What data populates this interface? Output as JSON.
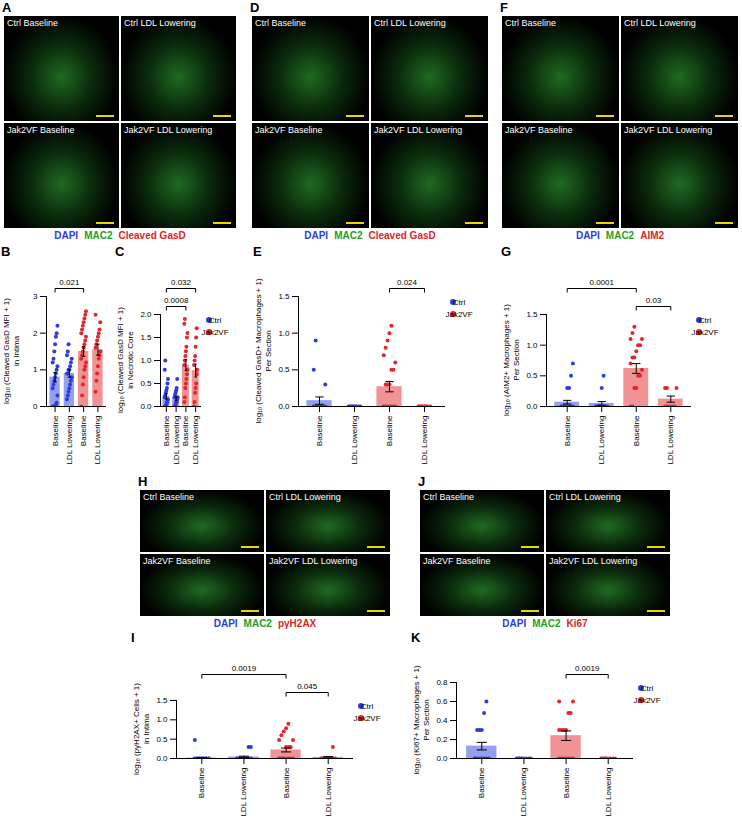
{
  "image_panels": [
    {
      "panel": "A",
      "tiles": [
        "Ctrl Baseline",
        "Ctrl LDL Lowering",
        "Jak2VF Baseline",
        "Jak2VF LDL Lowering"
      ],
      "stains": [
        {
          "text": "DAPI",
          "color": "#2b3de0"
        },
        {
          "text": "MAC2",
          "color": "#1e9e22"
        },
        {
          "text": "Cleaved GasD",
          "color": "#e02424"
        }
      ]
    },
    {
      "panel": "D",
      "tiles": [
        "Ctrl Baseline",
        "Ctrl LDL Lowering",
        "Jak2VF Baseline",
        "Jak2VF LDL Lowering"
      ],
      "stains": [
        {
          "text": "DAPI",
          "color": "#2b3de0"
        },
        {
          "text": "MAC2",
          "color": "#1e9e22"
        },
        {
          "text": "Cleaved GasD",
          "color": "#e02424"
        }
      ]
    },
    {
      "panel": "F",
      "tiles": [
        "Ctrl Baseline",
        "Ctrl LDL Lowering",
        "Jak2VF Baseline",
        "Jak2VF LDL Lowering"
      ],
      "stains": [
        {
          "text": "DAPI",
          "color": "#2b3de0"
        },
        {
          "text": "MAC2",
          "color": "#1e9e22"
        },
        {
          "text": "AIM2",
          "color": "#e02424"
        }
      ]
    },
    {
      "panel": "H",
      "tiles": [
        "Ctrl Baseline",
        "Ctrl LDL Lowering",
        "Jak2VF Baseline",
        "Jak2VF LDL Lowering"
      ],
      "stains": [
        {
          "text": "DAPI",
          "color": "#2b3de0"
        },
        {
          "text": "MAC2",
          "color": "#1e9e22"
        },
        {
          "text": "pγH2AX",
          "color": "#e02424"
        }
      ]
    },
    {
      "panel": "J",
      "tiles": [
        "Ctrl Baseline",
        "Ctrl LDL Lowering",
        "Jak2VF Baseline",
        "Jak2VF LDL Lowering"
      ],
      "stains": [
        {
          "text": "DAPI",
          "color": "#2b3de0"
        },
        {
          "text": "MAC2",
          "color": "#1e9e22"
        },
        {
          "text": "Ki67",
          "color": "#e02424"
        }
      ]
    }
  ],
  "chart_data": [
    {
      "panel": "B",
      "type": "bar",
      "ylabel": [
        "log₁₀ (Cleaved GasD MFI + 1)",
        "in Intima"
      ],
      "ylim": [
        0,
        3
      ],
      "yticks": [
        0,
        1,
        2,
        3
      ],
      "series": [
        {
          "name": "Ctrl",
          "color": "#2b3de0"
        },
        {
          "name": "Jak2VF",
          "color": "#e3262b"
        }
      ],
      "groups": [
        {
          "series": "Ctrl",
          "category": "Baseline",
          "value": 0.8,
          "error": 0.13,
          "points": [
            0,
            0,
            0,
            0,
            0.05,
            0.1,
            0.3,
            0.5,
            0.6,
            0.7,
            0.8,
            0.9,
            1.0,
            1.1,
            1.2,
            1.3,
            1.5,
            1.7,
            1.9,
            2.0,
            2.2
          ]
        },
        {
          "series": "Ctrl",
          "category": "LDL Lowering",
          "value": 0.9,
          "error": 0.1,
          "points": [
            0.2,
            0.3,
            0.4,
            0.5,
            0.6,
            0.7,
            0.8,
            0.9,
            0.9,
            1.0,
            1.0,
            1.1,
            1.2,
            1.3,
            1.4,
            1.5,
            1.7
          ]
        },
        {
          "series": "Jak2VF",
          "category": "Baseline",
          "value": 1.5,
          "error": 0.13,
          "points": [
            0,
            0.3,
            0.6,
            0.8,
            1.0,
            1.1,
            1.2,
            1.3,
            1.4,
            1.5,
            1.6,
            1.7,
            1.8,
            1.9,
            2.0,
            2.1,
            2.2,
            2.3,
            2.4,
            2.5,
            2.6
          ]
        },
        {
          "series": "Jak2VF",
          "category": "LDL Lowering",
          "value": 1.55,
          "error": 0.15,
          "points": [
            0.4,
            0.7,
            0.9,
            1.1,
            1.3,
            1.4,
            1.5,
            1.6,
            1.7,
            1.8,
            1.9,
            2.0,
            2.1,
            2.3,
            2.5
          ]
        }
      ],
      "annotations": [
        {
          "label": "0.021",
          "between": [
            {
              "series": "Ctrl",
              "category": "Baseline"
            },
            {
              "series": "Jak2VF",
              "category": "Baseline"
            }
          ]
        }
      ]
    },
    {
      "panel": "C",
      "type": "bar",
      "ylabel": [
        "log₁₀ (Cleaved GasD MFI + 1)",
        "in Necrotic Core"
      ],
      "ylim": [
        0,
        2
      ],
      "yticks": [
        {
          "value": 0,
          "label": "0.0"
        },
        {
          "value": 0.5,
          "label": "0.5"
        },
        {
          "value": 1,
          "label": "1.0"
        },
        {
          "value": 1.5,
          "label": "1.5"
        },
        {
          "value": 2,
          "label": "2.0"
        }
      ],
      "legend": "right",
      "series": [
        {
          "name": "Ctrl",
          "color": "#2b3de0"
        },
        {
          "name": "Jak2VF",
          "color": "#e3262b"
        }
      ],
      "groups": [
        {
          "series": "Ctrl",
          "category": "Baseline",
          "value": 0.22,
          "error": 0.06,
          "points": [
            0,
            0,
            0,
            0.05,
            0.1,
            0.1,
            0.15,
            0.2,
            0.25,
            0.3,
            0.35,
            0.4,
            0.5,
            0.6,
            0.8,
            1.0
          ]
        },
        {
          "series": "Ctrl",
          "category": "LDL Lowering",
          "value": 0.17,
          "error": 0.04,
          "points": [
            0,
            0,
            0.05,
            0.1,
            0.1,
            0.15,
            0.2,
            0.2,
            0.25,
            0.3,
            0.35,
            0.4,
            0.6
          ]
        },
        {
          "series": "Jak2VF",
          "category": "Baseline",
          "value": 0.9,
          "error": 0.12,
          "points": [
            0.1,
            0.2,
            0.4,
            0.5,
            0.6,
            0.7,
            0.8,
            0.9,
            1.0,
            1.1,
            1.2,
            1.3,
            1.5,
            1.6,
            1.8,
            1.9
          ]
        },
        {
          "series": "Jak2VF",
          "category": "LDL Lowering",
          "value": 0.78,
          "error": 0.14,
          "points": [
            0,
            0.1,
            0.3,
            0.4,
            0.5,
            0.7,
            0.8,
            0.9,
            1.0,
            1.1,
            1.3,
            1.5,
            1.7
          ]
        }
      ],
      "annotations": [
        {
          "label": "0.0008",
          "between": [
            {
              "series": "Ctrl",
              "category": "Baseline"
            },
            {
              "series": "Jak2VF",
              "category": "Baseline"
            }
          ]
        },
        {
          "label": "0.032",
          "between": [
            {
              "series": "Ctrl",
              "category": "Baseline"
            },
            {
              "series": "Jak2VF",
              "category": "LDL Lowering"
            }
          ]
        }
      ]
    },
    {
      "panel": "E",
      "type": "bar",
      "ylabel": [
        "log₁₀ (Cleaved GasD+ Macrophages + 1)",
        "Per Section"
      ],
      "ylim": [
        0,
        1.5
      ],
      "yticks": [
        {
          "value": 0,
          "label": "0.0"
        },
        {
          "value": 0.5,
          "label": "0.5"
        },
        {
          "value": 1,
          "label": "1.0"
        },
        {
          "value": 1.5,
          "label": "1.5"
        }
      ],
      "legend": "right",
      "series": [
        {
          "name": "Ctrl",
          "color": "#2b3de0"
        },
        {
          "name": "Jak2VF",
          "color": "#e3262b"
        }
      ],
      "groups": [
        {
          "series": "Ctrl",
          "category": "Baseline",
          "value": 0.08,
          "error": 0.05,
          "points": [
            0,
            0,
            0,
            0,
            0,
            0,
            0,
            0,
            0,
            0,
            0,
            0,
            0,
            0.3,
            0.5,
            0.9
          ]
        },
        {
          "series": "Ctrl",
          "category": "LDL Lowering",
          "value": 0,
          "error": 0,
          "points": [
            0,
            0,
            0,
            0,
            0,
            0,
            0,
            0,
            0,
            0,
            0,
            0
          ]
        },
        {
          "series": "Jak2VF",
          "category": "Baseline",
          "value": 0.27,
          "error": 0.07,
          "points": [
            0,
            0,
            0,
            0,
            0,
            0,
            0,
            0,
            0.3,
            0.3,
            0.3,
            0.5,
            0.5,
            0.6,
            0.7,
            0.8,
            0.9,
            1.0,
            1.1
          ]
        },
        {
          "series": "Jak2VF",
          "category": "LDL Lowering",
          "value": 0,
          "error": 0,
          "points": [
            0,
            0,
            0,
            0,
            0,
            0,
            0,
            0,
            0,
            0,
            0,
            0
          ]
        }
      ],
      "annotations": [
        {
          "label": "0.024",
          "between": [
            {
              "series": "Jak2VF",
              "category": "Baseline"
            },
            {
              "series": "Jak2VF",
              "category": "LDL Lowering"
            }
          ]
        }
      ]
    },
    {
      "panel": "G",
      "type": "bar",
      "ylabel": [
        "log₁₀ (AIM2+ Macrophages + 1)",
        "Per Section"
      ],
      "ylim": [
        0,
        1.5
      ],
      "yticks": [
        {
          "value": 0,
          "label": "0.0"
        },
        {
          "value": 0.5,
          "label": "0.5"
        },
        {
          "value": 1,
          "label": "1.0"
        },
        {
          "value": 1.5,
          "label": "1.5"
        }
      ],
      "legend": "right",
      "series": [
        {
          "name": "Ctrl",
          "color": "#2b3de0"
        },
        {
          "name": "Jak2VF",
          "color": "#e3262b"
        }
      ],
      "groups": [
        {
          "series": "Ctrl",
          "category": "Baseline",
          "value": 0.07,
          "error": 0.03,
          "points": [
            0,
            0,
            0,
            0,
            0,
            0,
            0,
            0,
            0,
            0,
            0.3,
            0.3,
            0.5,
            0.7
          ]
        },
        {
          "series": "Ctrl",
          "category": "LDL Lowering",
          "value": 0.05,
          "error": 0.03,
          "points": [
            0,
            0,
            0,
            0,
            0,
            0,
            0,
            0,
            0,
            0,
            0.3,
            0.5
          ]
        },
        {
          "series": "Jak2VF",
          "category": "Baseline",
          "value": 0.62,
          "error": 0.08,
          "points": [
            0,
            0,
            0.3,
            0.3,
            0.5,
            0.5,
            0.6,
            0.7,
            0.8,
            0.8,
            0.9,
            1.0,
            1.0,
            1.1,
            1.1,
            1.2,
            1.3
          ]
        },
        {
          "series": "Jak2VF",
          "category": "LDL Lowering",
          "value": 0.12,
          "error": 0.05,
          "points": [
            0,
            0,
            0,
            0,
            0,
            0,
            0.3,
            0.3,
            0.3
          ]
        }
      ],
      "annotations": [
        {
          "label": "0.03",
          "between": [
            {
              "series": "Jak2VF",
              "category": "Baseline"
            },
            {
              "series": "Jak2VF",
              "category": "LDL Lowering"
            }
          ]
        },
        {
          "label": "0.0001",
          "between": [
            {
              "series": "Ctrl",
              "category": "Baseline"
            },
            {
              "series": "Jak2VF",
              "category": "Baseline"
            }
          ]
        }
      ]
    },
    {
      "panel": "I",
      "type": "bar",
      "ylabel": [
        "log₁₀ (pγH2AX+ Cells + 1)",
        "in Intima"
      ],
      "ylim": [
        0,
        1.5
      ],
      "yticks": [
        {
          "value": 0,
          "label": "0.0"
        },
        {
          "value": 0.5,
          "label": "0.5"
        },
        {
          "value": 1,
          "label": "1.0"
        },
        {
          "value": 1.5,
          "label": "1.5"
        }
      ],
      "legend": "right",
      "series": [
        {
          "name": "Ctrl",
          "color": "#2b3de0"
        },
        {
          "name": "Jak2VF",
          "color": "#e3262b"
        }
      ],
      "groups": [
        {
          "series": "Ctrl",
          "category": "Baseline",
          "value": 0.01,
          "error": 0.01,
          "points": [
            0,
            0,
            0,
            0,
            0,
            0,
            0,
            0,
            0,
            0,
            0,
            0,
            0,
            0,
            0.48
          ]
        },
        {
          "series": "Ctrl",
          "category": "LDL Lowering",
          "value": 0.04,
          "error": 0.02,
          "points": [
            0,
            0,
            0,
            0,
            0,
            0,
            0,
            0,
            0,
            0,
            0,
            0,
            0.3,
            0.3
          ]
        },
        {
          "series": "Jak2VF",
          "category": "Baseline",
          "value": 0.22,
          "error": 0.05,
          "points": [
            0,
            0,
            0,
            0,
            0,
            0,
            0,
            0,
            0,
            0,
            0.3,
            0.3,
            0.3,
            0.48,
            0.48,
            0.6,
            0.7,
            0.78,
            0.9
          ]
        },
        {
          "series": "Jak2VF",
          "category": "LDL Lowering",
          "value": 0.03,
          "error": 0.02,
          "points": [
            0,
            0,
            0,
            0,
            0,
            0,
            0,
            0,
            0,
            0,
            0,
            0,
            0.3
          ]
        }
      ],
      "annotations": [
        {
          "label": "0.045",
          "between": [
            {
              "series": "Jak2VF",
              "category": "Baseline"
            },
            {
              "series": "Jak2VF",
              "category": "LDL Lowering"
            }
          ]
        },
        {
          "label": "0.0019",
          "between": [
            {
              "series": "Ctrl",
              "category": "Baseline"
            },
            {
              "series": "Jak2VF",
              "category": "Baseline"
            }
          ]
        }
      ]
    },
    {
      "panel": "K",
      "type": "bar",
      "ylabel": [
        "log₁₀ (Ki67+ Macrophages + 1)",
        "Per Section"
      ],
      "ylim": [
        0,
        0.8
      ],
      "yticks": [
        {
          "value": 0,
          "label": "0.0"
        },
        {
          "value": 0.2,
          "label": "0.2"
        },
        {
          "value": 0.4,
          "label": "0.4"
        },
        {
          "value": 0.6,
          "label": "0.6"
        },
        {
          "value": 0.8,
          "label": "0.8"
        }
      ],
      "legend": "right",
      "series": [
        {
          "name": "Ctrl",
          "color": "#2b3de0"
        },
        {
          "name": "Jak2VF",
          "color": "#e3262b"
        }
      ],
      "groups": [
        {
          "series": "Ctrl",
          "category": "Baseline",
          "value": 0.13,
          "error": 0.04,
          "points": [
            0,
            0,
            0,
            0,
            0,
            0,
            0,
            0,
            0.3,
            0.3,
            0.3,
            0.48,
            0.6
          ]
        },
        {
          "series": "Ctrl",
          "category": "LDL Lowering",
          "value": 0,
          "error": 0,
          "points": [
            0,
            0,
            0,
            0,
            0,
            0,
            0,
            0,
            0,
            0
          ]
        },
        {
          "series": "Jak2VF",
          "category": "Baseline",
          "value": 0.24,
          "error": 0.05,
          "points": [
            0,
            0,
            0,
            0,
            0,
            0,
            0,
            0.3,
            0.3,
            0.3,
            0.3,
            0.48,
            0.48,
            0.6,
            0.6
          ]
        },
        {
          "series": "Jak2VF",
          "category": "LDL Lowering",
          "value": 0,
          "error": 0,
          "points": [
            0,
            0,
            0,
            0,
            0,
            0,
            0,
            0,
            0,
            0
          ]
        }
      ],
      "annotations": [
        {
          "label": "0.0019",
          "between": [
            {
              "series": "Jak2VF",
              "category": "Baseline"
            },
            {
              "series": "Jak2VF",
              "category": "LDL Lowering"
            }
          ]
        }
      ]
    }
  ]
}
